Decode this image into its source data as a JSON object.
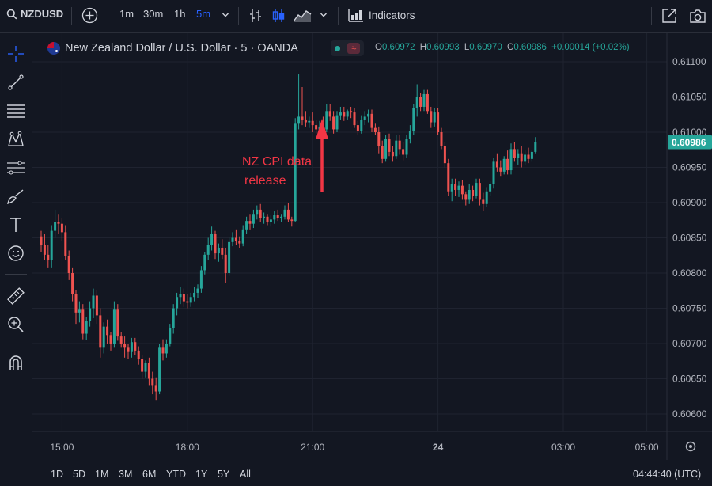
{
  "toolbar": {
    "symbol": "NZDUSD",
    "intervals": [
      "1m",
      "30m",
      "1h",
      "5m"
    ],
    "active_interval": "5m",
    "indicators_label": "Indicators"
  },
  "legend": {
    "title": "New Zealand Dollar / U.S. Dollar · 5 · OANDA",
    "open_key": "O",
    "open": "0.60972",
    "high_key": "H",
    "high": "0.60993",
    "low_key": "L",
    "low": "0.60970",
    "close_key": "C",
    "close": "0.60986",
    "change": "+0.00014 (+0.02%)"
  },
  "bottombar": {
    "ranges": [
      "1D",
      "5D",
      "1M",
      "3M",
      "6M",
      "YTD",
      "1Y",
      "5Y",
      "All"
    ],
    "clock": "04:44:40 (UTC)"
  },
  "colors": {
    "up": "#26a69a",
    "down": "#ef5350",
    "annotation": "#f23645",
    "background": "#131722",
    "active": "#2962ff"
  },
  "chart_data": {
    "type": "candlestick",
    "interval": "5",
    "x_ticks": [
      {
        "label": "15:00",
        "bar": 6
      },
      {
        "label": "18:00",
        "bar": 42
      },
      {
        "label": "21:00",
        "bar": 78
      },
      {
        "label": "24",
        "bar": 114
      },
      {
        "label": "03:00",
        "bar": 150
      },
      {
        "label": "05:00",
        "bar": 174
      }
    ],
    "y_ticks": [
      "0.61100",
      "0.61050",
      "0.61000",
      "0.60950",
      "0.60900",
      "0.60850",
      "0.60800",
      "0.60750",
      "0.60700",
      "0.60650",
      "0.60600"
    ],
    "ylim": [
      0.60575,
      0.61115
    ],
    "last_price": "0.60986",
    "last_price_value": 0.60986,
    "annotation": {
      "text": [
        "NZ CPI data",
        "release"
      ],
      "bar": 80
    },
    "ohlc": [
      [
        0.60852,
        0.6086,
        0.6083,
        0.6084
      ],
      [
        0.6084,
        0.60856,
        0.60818,
        0.60826
      ],
      [
        0.60826,
        0.6084,
        0.60808,
        0.60818
      ],
      [
        0.60818,
        0.60868,
        0.60808,
        0.6086
      ],
      [
        0.6086,
        0.6089,
        0.6085,
        0.60872
      ],
      [
        0.60872,
        0.60884,
        0.60856,
        0.6087
      ],
      [
        0.6087,
        0.60878,
        0.60846,
        0.60858
      ],
      [
        0.60858,
        0.60868,
        0.60818,
        0.60824
      ],
      [
        0.60824,
        0.60832,
        0.6079,
        0.608
      ],
      [
        0.608,
        0.60808,
        0.6076,
        0.6077
      ],
      [
        0.6077,
        0.60776,
        0.60728,
        0.60744
      ],
      [
        0.60744,
        0.6076,
        0.6073,
        0.60748
      ],
      [
        0.60748,
        0.60756,
        0.60706,
        0.60714
      ],
      [
        0.60714,
        0.60738,
        0.60705,
        0.60732
      ],
      [
        0.60732,
        0.6076,
        0.60724,
        0.6075
      ],
      [
        0.6075,
        0.60778,
        0.60736,
        0.60768
      ],
      [
        0.60768,
        0.60776,
        0.60728,
        0.6074
      ],
      [
        0.6074,
        0.6075,
        0.6068,
        0.60694
      ],
      [
        0.60694,
        0.6073,
        0.60686,
        0.60724
      ],
      [
        0.60724,
        0.60734,
        0.607,
        0.60712
      ],
      [
        0.60712,
        0.60716,
        0.6069,
        0.607
      ],
      [
        0.607,
        0.6076,
        0.60694,
        0.60748
      ],
      [
        0.60748,
        0.60756,
        0.60704,
        0.6071
      ],
      [
        0.6071,
        0.60716,
        0.60694,
        0.607
      ],
      [
        0.607,
        0.6071,
        0.6068,
        0.60694
      ],
      [
        0.60694,
        0.607,
        0.60678,
        0.60688
      ],
      [
        0.60688,
        0.60708,
        0.6068,
        0.60702
      ],
      [
        0.60702,
        0.60708,
        0.60684,
        0.6069
      ],
      [
        0.6069,
        0.60696,
        0.6067,
        0.60678
      ],
      [
        0.60678,
        0.60684,
        0.6065,
        0.6066
      ],
      [
        0.6066,
        0.60676,
        0.60652,
        0.60672
      ],
      [
        0.60672,
        0.6068,
        0.6064,
        0.6065
      ],
      [
        0.6065,
        0.6066,
        0.60628,
        0.6064
      ],
      [
        0.6064,
        0.60652,
        0.6062,
        0.60632
      ],
      [
        0.60632,
        0.607,
        0.60628,
        0.60694
      ],
      [
        0.60694,
        0.60706,
        0.60676,
        0.60686
      ],
      [
        0.60686,
        0.60706,
        0.6068,
        0.607
      ],
      [
        0.607,
        0.60728,
        0.60696,
        0.60722
      ],
      [
        0.60722,
        0.60756,
        0.60714,
        0.6075
      ],
      [
        0.6075,
        0.60772,
        0.6074,
        0.60766
      ],
      [
        0.60766,
        0.6078,
        0.60756,
        0.6077
      ],
      [
        0.6077,
        0.60778,
        0.60752,
        0.6076
      ],
      [
        0.6076,
        0.6077,
        0.6075,
        0.60758
      ],
      [
        0.60758,
        0.60772,
        0.60752,
        0.60766
      ],
      [
        0.60766,
        0.6078,
        0.6076,
        0.60772
      ],
      [
        0.60772,
        0.60784,
        0.60764,
        0.60778
      ],
      [
        0.60778,
        0.6081,
        0.60772,
        0.60804
      ],
      [
        0.60804,
        0.6083,
        0.60798,
        0.60826
      ],
      [
        0.60826,
        0.6085,
        0.60818,
        0.6084
      ],
      [
        0.6084,
        0.60866,
        0.60832,
        0.60856
      ],
      [
        0.60856,
        0.6086,
        0.6082,
        0.60828
      ],
      [
        0.60828,
        0.60842,
        0.60816,
        0.60836
      ],
      [
        0.60836,
        0.60848,
        0.6082,
        0.60826
      ],
      [
        0.60826,
        0.60836,
        0.60786,
        0.608
      ],
      [
        0.608,
        0.6085,
        0.60796,
        0.60844
      ],
      [
        0.60844,
        0.60858,
        0.60838,
        0.6085
      ],
      [
        0.6085,
        0.60862,
        0.6084,
        0.60846
      ],
      [
        0.60846,
        0.60852,
        0.60836,
        0.60842
      ],
      [
        0.60842,
        0.60868,
        0.60838,
        0.60862
      ],
      [
        0.60862,
        0.6088,
        0.60856,
        0.60874
      ],
      [
        0.60874,
        0.60884,
        0.60862,
        0.6087
      ],
      [
        0.6087,
        0.6089,
        0.60864,
        0.60884
      ],
      [
        0.60884,
        0.60896,
        0.60876,
        0.6089
      ],
      [
        0.6089,
        0.60898,
        0.60872,
        0.60878
      ],
      [
        0.60878,
        0.60886,
        0.6087,
        0.6088
      ],
      [
        0.6088,
        0.60884,
        0.60868,
        0.60872
      ],
      [
        0.60872,
        0.60882,
        0.60866,
        0.60876
      ],
      [
        0.60876,
        0.60888,
        0.6087,
        0.60882
      ],
      [
        0.60882,
        0.6089,
        0.60874,
        0.60878
      ],
      [
        0.60878,
        0.60884,
        0.60872,
        0.6088
      ],
      [
        0.6088,
        0.60896,
        0.60876,
        0.6089
      ],
      [
        0.6089,
        0.609,
        0.60872,
        0.60876
      ],
      [
        0.60876,
        0.6088,
        0.60866,
        0.60874
      ],
      [
        0.60874,
        0.6102,
        0.60872,
        0.61012
      ],
      [
        0.61012,
        0.61082,
        0.61004,
        0.61022
      ],
      [
        0.61022,
        0.61064,
        0.6101,
        0.61018
      ],
      [
        0.61018,
        0.6103,
        0.61008,
        0.61014
      ],
      [
        0.61014,
        0.61022,
        0.61006,
        0.61016
      ],
      [
        0.61016,
        0.61028,
        0.61,
        0.6101
      ],
      [
        0.6101,
        0.61018,
        0.60998,
        0.61004
      ],
      [
        0.61004,
        0.61016,
        0.60996,
        0.61008
      ],
      [
        0.61008,
        0.61022,
        0.61,
        0.61004
      ],
      [
        0.61004,
        0.6104,
        0.61,
        0.6103
      ],
      [
        0.6103,
        0.6104,
        0.61016,
        0.61022
      ],
      [
        0.61022,
        0.6103,
        0.60998,
        0.61004
      ],
      [
        0.61004,
        0.6103,
        0.61,
        0.61024
      ],
      [
        0.61024,
        0.61036,
        0.61018,
        0.61028
      ],
      [
        0.61028,
        0.61036,
        0.61016,
        0.61022
      ],
      [
        0.61022,
        0.61032,
        0.61018,
        0.6103
      ],
      [
        0.6103,
        0.61036,
        0.6102,
        0.61028
      ],
      [
        0.61028,
        0.61034,
        0.61006,
        0.6101
      ],
      [
        0.6101,
        0.61016,
        0.60996,
        0.61002
      ],
      [
        0.61002,
        0.61024,
        0.60998,
        0.61018
      ],
      [
        0.61018,
        0.6103,
        0.6101,
        0.61022
      ],
      [
        0.61022,
        0.61032,
        0.61014,
        0.61026
      ],
      [
        0.61026,
        0.61032,
        0.61,
        0.61006
      ],
      [
        0.61006,
        0.61012,
        0.60996,
        0.61
      ],
      [
        0.61,
        0.61008,
        0.6097,
        0.6098
      ],
      [
        0.6098,
        0.60988,
        0.60956,
        0.60962
      ],
      [
        0.60962,
        0.60996,
        0.60958,
        0.6099
      ],
      [
        0.6099,
        0.60998,
        0.60966,
        0.60972
      ],
      [
        0.60972,
        0.6098,
        0.60958,
        0.60966
      ],
      [
        0.60966,
        0.60996,
        0.60962,
        0.60988
      ],
      [
        0.60988,
        0.60996,
        0.60968,
        0.60976
      ],
      [
        0.60976,
        0.60986,
        0.6096,
        0.60968
      ],
      [
        0.60968,
        0.60996,
        0.60964,
        0.6099
      ],
      [
        0.6099,
        0.6101,
        0.60984,
        0.61002
      ],
      [
        0.61002,
        0.6104,
        0.60996,
        0.61034
      ],
      [
        0.61034,
        0.61068,
        0.61022,
        0.6105
      ],
      [
        0.6105,
        0.61056,
        0.6103,
        0.61036
      ],
      [
        0.61036,
        0.6106,
        0.6103,
        0.61054
      ],
      [
        0.61054,
        0.6106,
        0.61026,
        0.6103
      ],
      [
        0.6103,
        0.61036,
        0.61006,
        0.61014
      ],
      [
        0.61014,
        0.61034,
        0.61008,
        0.61028
      ],
      [
        0.61028,
        0.61034,
        0.60996,
        0.61
      ],
      [
        0.61,
        0.61006,
        0.60976,
        0.6098
      ],
      [
        0.6098,
        0.60986,
        0.6095,
        0.60956
      ],
      [
        0.60956,
        0.60962,
        0.6091,
        0.60916
      ],
      [
        0.60916,
        0.60934,
        0.60902,
        0.60926
      ],
      [
        0.60926,
        0.60934,
        0.6091,
        0.60918
      ],
      [
        0.60918,
        0.6093,
        0.60908,
        0.60924
      ],
      [
        0.60924,
        0.60932,
        0.60904,
        0.60912
      ],
      [
        0.60912,
        0.60916,
        0.60896,
        0.60904
      ],
      [
        0.60904,
        0.60926,
        0.60898,
        0.60918
      ],
      [
        0.60918,
        0.60924,
        0.60902,
        0.6091
      ],
      [
        0.6091,
        0.60934,
        0.60906,
        0.60928
      ],
      [
        0.60928,
        0.60934,
        0.60896,
        0.60904
      ],
      [
        0.60904,
        0.60914,
        0.60888,
        0.60898
      ],
      [
        0.60898,
        0.60922,
        0.60894,
        0.60916
      ],
      [
        0.60916,
        0.6093,
        0.6091,
        0.60926
      ],
      [
        0.60926,
        0.60964,
        0.6092,
        0.60958
      ],
      [
        0.60958,
        0.6097,
        0.60944,
        0.6095
      ],
      [
        0.6095,
        0.6096,
        0.60938,
        0.60944
      ],
      [
        0.60944,
        0.60966,
        0.6094,
        0.60962
      ],
      [
        0.60962,
        0.60974,
        0.6094,
        0.60946
      ],
      [
        0.60946,
        0.60984,
        0.6094,
        0.60976
      ],
      [
        0.60976,
        0.60986,
        0.60958,
        0.60964
      ],
      [
        0.60964,
        0.60976,
        0.60954,
        0.6097
      ],
      [
        0.6097,
        0.6098,
        0.6095,
        0.60958
      ],
      [
        0.60958,
        0.60974,
        0.60954,
        0.60968
      ],
      [
        0.60968,
        0.60978,
        0.60956,
        0.60962
      ],
      [
        0.60962,
        0.60974,
        0.60958,
        0.60972
      ],
      [
        0.60972,
        0.60993,
        0.6097,
        0.60986
      ]
    ]
  }
}
